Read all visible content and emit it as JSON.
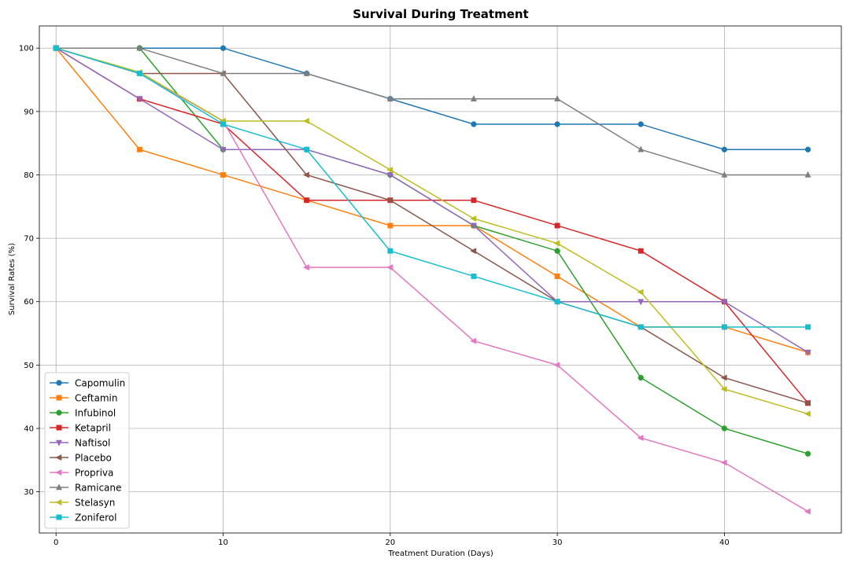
{
  "chart_data": {
    "type": "line",
    "title": "Survival During Treatment",
    "xlabel": "Treatment Duration (Days)",
    "ylabel": "Survival Rates (%)",
    "xlim": [
      -1,
      47
    ],
    "ylim": [
      23.5,
      103.5
    ],
    "xticks": [
      0,
      10,
      20,
      30,
      40
    ],
    "yticks": [
      30,
      40,
      50,
      60,
      70,
      80,
      90,
      100
    ],
    "grid": true,
    "legend_position": "lower-left",
    "x": [
      0,
      5,
      10,
      15,
      20,
      25,
      30,
      35,
      40,
      45
    ],
    "series": [
      {
        "name": "Capomulin",
        "color": "#1f77b4",
        "marker": "circle",
        "values": [
          100,
          100,
          100,
          96,
          92,
          88,
          88,
          88,
          84,
          84
        ]
      },
      {
        "name": "Ceftamin",
        "color": "#ff7f0e",
        "marker": "square",
        "values": [
          100,
          84,
          80,
          76,
          72,
          72,
          64,
          56,
          56,
          52
        ]
      },
      {
        "name": "Infubinol",
        "color": "#2ca02c",
        "marker": "circle",
        "values": [
          100,
          100,
          84,
          84,
          80,
          72,
          68,
          48,
          40,
          36
        ]
      },
      {
        "name": "Ketapril",
        "color": "#d62728",
        "marker": "square",
        "values": [
          100,
          92,
          88,
          76,
          76,
          76,
          72,
          68,
          60,
          44
        ]
      },
      {
        "name": "Naftisol",
        "color": "#9467bd",
        "marker": "triangle-down",
        "values": [
          100,
          92,
          84,
          84,
          80,
          72,
          60,
          60,
          60,
          52
        ]
      },
      {
        "name": "Placebo",
        "color": "#8c564b",
        "marker": "triangle-left",
        "values": [
          100,
          96,
          96,
          80,
          76,
          68,
          60,
          56,
          48,
          44
        ]
      },
      {
        "name": "Propriva",
        "color": "#e377c2",
        "marker": "triangle-left",
        "values": [
          100,
          96,
          88.5,
          65.4,
          65.4,
          53.8,
          50,
          38.5,
          34.6,
          26.9
        ]
      },
      {
        "name": "Ramicane",
        "color": "#7f7f7f",
        "marker": "triangle-up",
        "values": [
          100,
          100,
          96,
          96,
          92,
          92,
          92,
          84,
          80,
          80
        ]
      },
      {
        "name": "Stelasyn",
        "color": "#bcbd22",
        "marker": "triangle-left",
        "values": [
          100,
          96.2,
          88.5,
          88.5,
          80.8,
          73.1,
          69.2,
          61.5,
          46.2,
          42.3
        ]
      },
      {
        "name": "Zoniferol",
        "color": "#17becf",
        "marker": "square",
        "values": [
          100,
          96,
          88,
          84,
          68,
          64,
          60,
          56,
          56,
          56
        ]
      }
    ]
  }
}
